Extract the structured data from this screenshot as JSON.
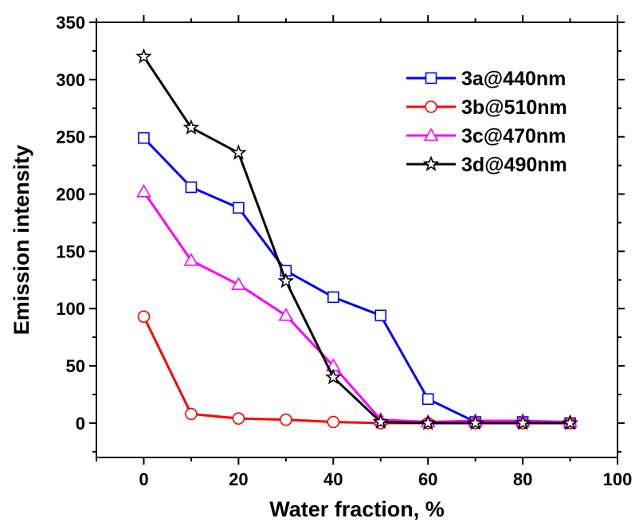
{
  "chart_data": {
    "type": "line",
    "title": "",
    "xlabel": "Water fraction, %",
    "ylabel": "Emission intensity",
    "xlim": [
      -10,
      100
    ],
    "ylim": [
      -30,
      350
    ],
    "xticks": [
      0,
      20,
      40,
      60,
      80,
      100
    ],
    "yticks": [
      0,
      50,
      100,
      150,
      200,
      250,
      300,
      350
    ],
    "x": [
      0,
      10,
      20,
      30,
      40,
      50,
      60,
      70,
      80,
      90
    ],
    "grid": false,
    "legend_position": "top-right",
    "series": [
      {
        "name": "3a@440nm",
        "color": "#0000ff",
        "marker": "square",
        "values": [
          249,
          206,
          188,
          133,
          110,
          94,
          21,
          1,
          1,
          0
        ]
      },
      {
        "name": "3b@510nm",
        "color": "#ff0000",
        "marker": "circle",
        "values": [
          93,
          8,
          4,
          3,
          1,
          0,
          0,
          0,
          0,
          0
        ]
      },
      {
        "name": "3c@470nm",
        "color": "#ff00ff",
        "marker": "triangle",
        "values": [
          202,
          142,
          121,
          94,
          50,
          3,
          1,
          2,
          2,
          1
        ]
      },
      {
        "name": "3d@490nm",
        "color": "#000000",
        "marker": "star",
        "values": [
          320,
          258,
          236,
          124,
          40,
          1,
          0,
          0,
          0,
          0
        ]
      }
    ]
  }
}
